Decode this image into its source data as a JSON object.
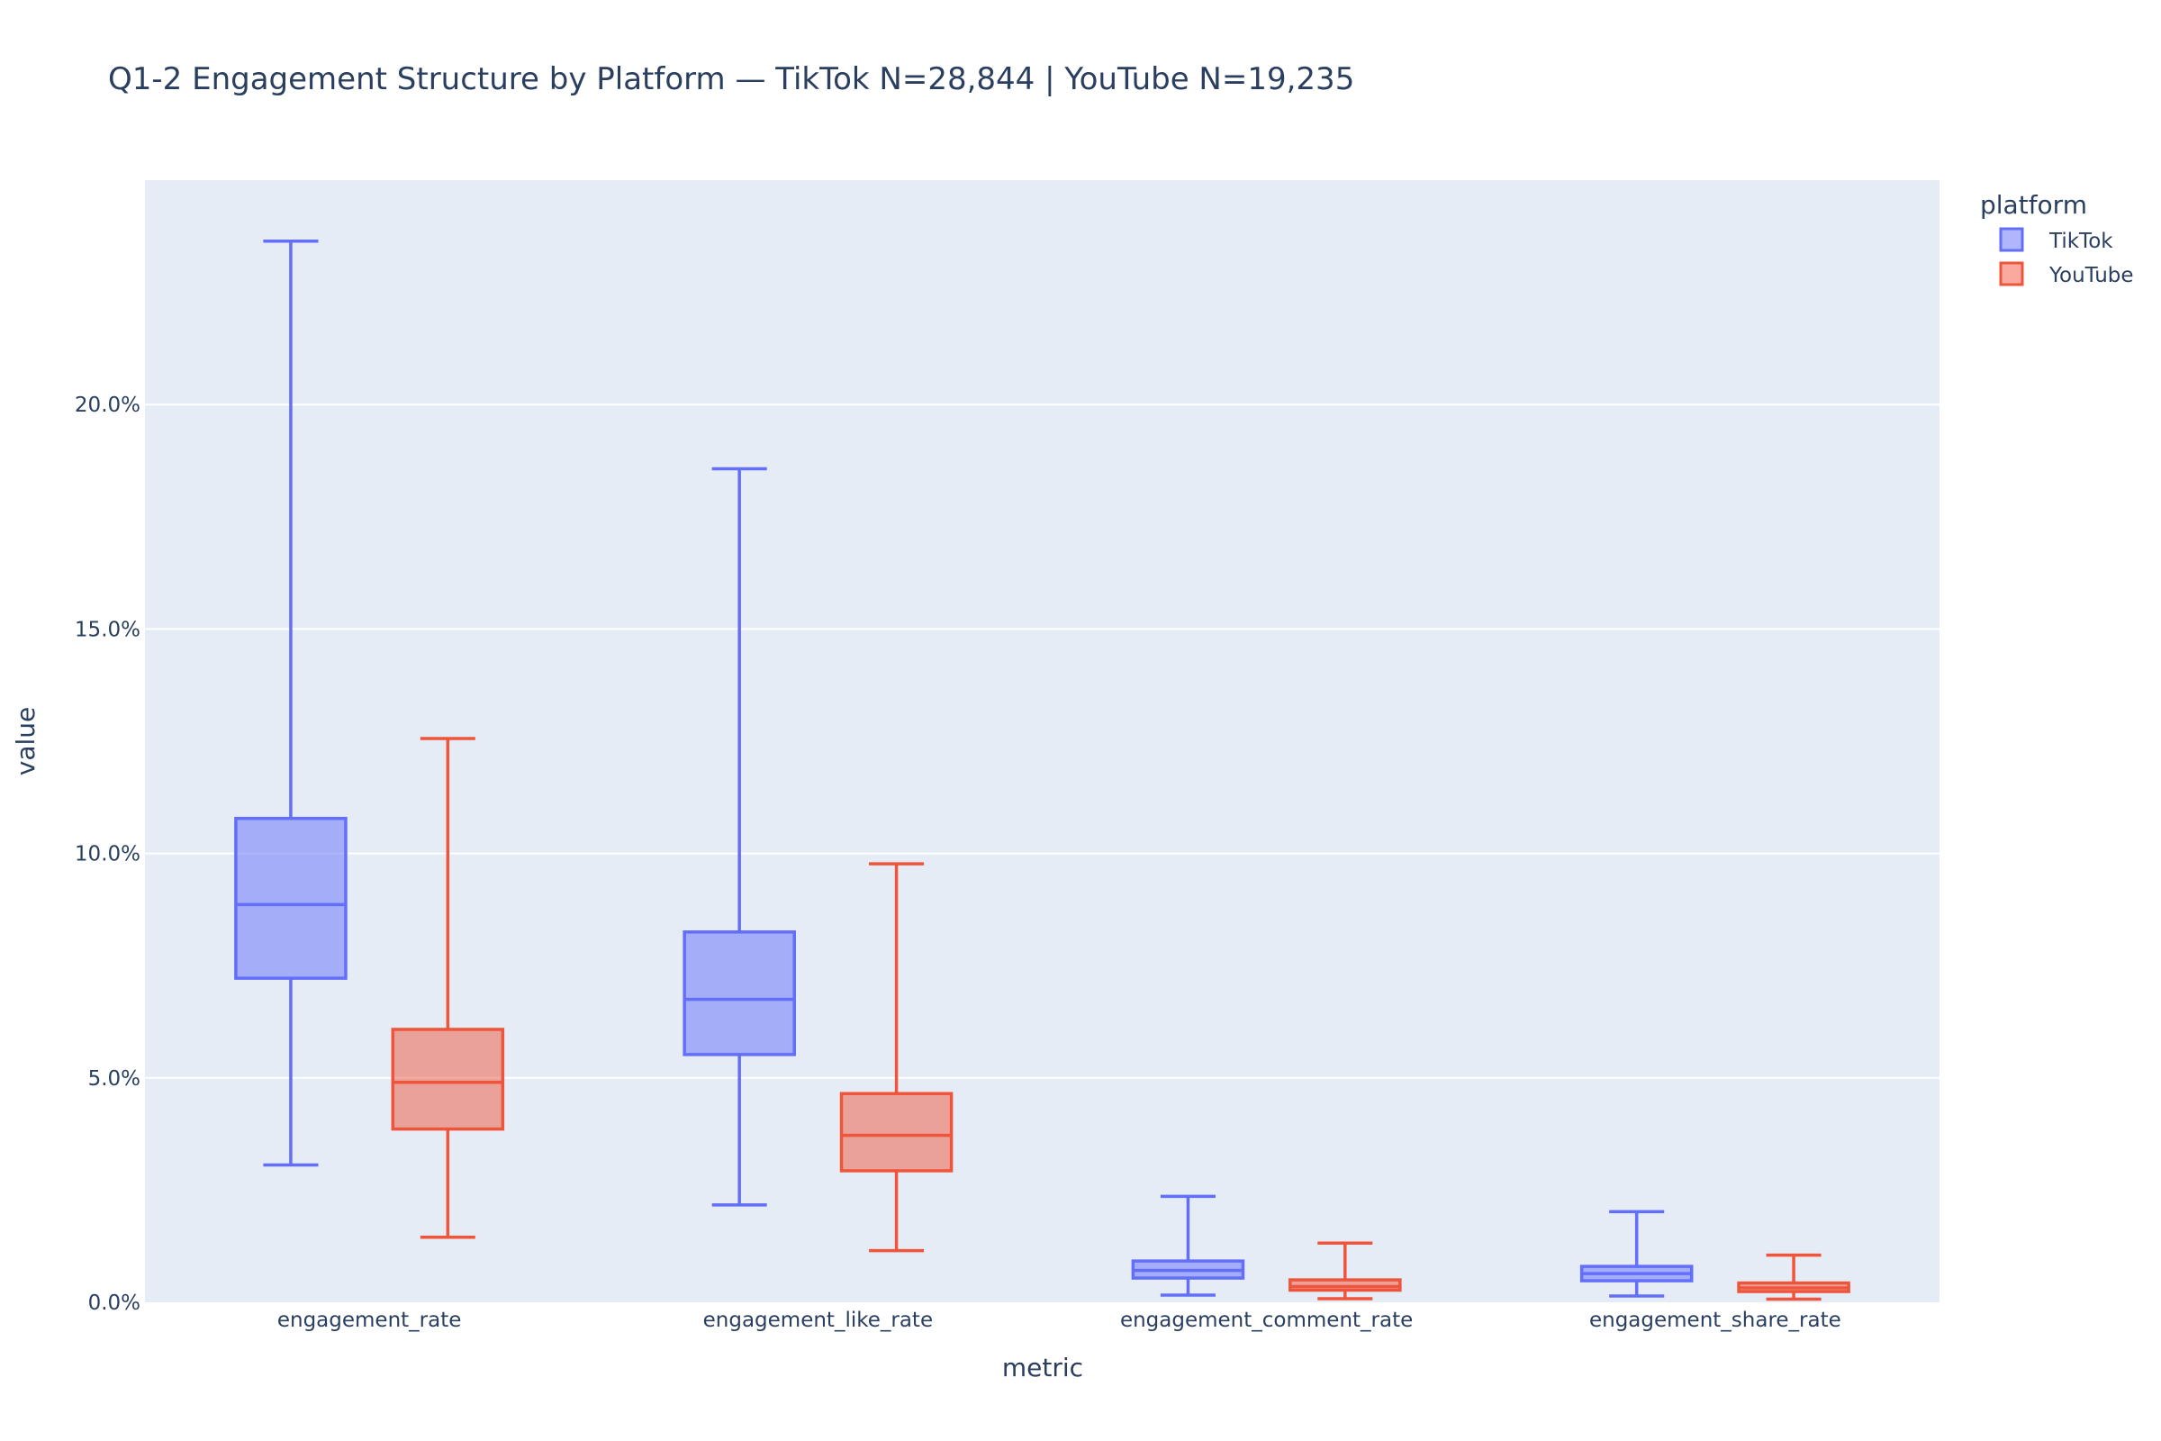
{
  "chart_data": {
    "type": "box",
    "title": "Q1-2 Engagement Structure by Platform — TikTok N=28,844 | YouTube N=19,235",
    "xlabel": "metric",
    "ylabel": "value",
    "ylim": [
      0,
      0.25
    ],
    "y_ticks": [
      0,
      0.05,
      0.1,
      0.15,
      0.2
    ],
    "y_tick_labels": [
      "0.0%",
      "5.0%",
      "10.0%",
      "15.0%",
      "20.0%"
    ],
    "y_format": "percent",
    "grid": true,
    "legend": {
      "title": "platform",
      "position": "top-right"
    },
    "categories": [
      "engagement_rate",
      "engagement_like_rate",
      "engagement_comment_rate",
      "engagement_share_rate"
    ],
    "series": [
      {
        "name": "TikTok",
        "color": "#636efa",
        "boxes": [
          {
            "min": 0.0306,
            "q1": 0.0722,
            "median": 0.0886,
            "q3": 0.1078,
            "max": 0.2364
          },
          {
            "min": 0.0217,
            "q1": 0.0552,
            "median": 0.0675,
            "q3": 0.0825,
            "max": 0.1857
          },
          {
            "min": 0.0016,
            "q1": 0.0054,
            "median": 0.0071,
            "q3": 0.0092,
            "max": 0.0236
          },
          {
            "min": 0.0014,
            "q1": 0.0048,
            "median": 0.0064,
            "q3": 0.008,
            "max": 0.0202
          }
        ]
      },
      {
        "name": "YouTube",
        "color": "#ef553b",
        "boxes": [
          {
            "min": 0.0145,
            "q1": 0.0386,
            "median": 0.049,
            "q3": 0.0608,
            "max": 0.1256
          },
          {
            "min": 0.0115,
            "q1": 0.0293,
            "median": 0.0372,
            "q3": 0.0465,
            "max": 0.0977
          },
          {
            "min": 0.0008,
            "q1": 0.0027,
            "median": 0.0035,
            "q3": 0.005,
            "max": 0.0132
          },
          {
            "min": 0.0007,
            "q1": 0.0024,
            "median": 0.0032,
            "q3": 0.0043,
            "max": 0.0105
          }
        ]
      }
    ]
  }
}
